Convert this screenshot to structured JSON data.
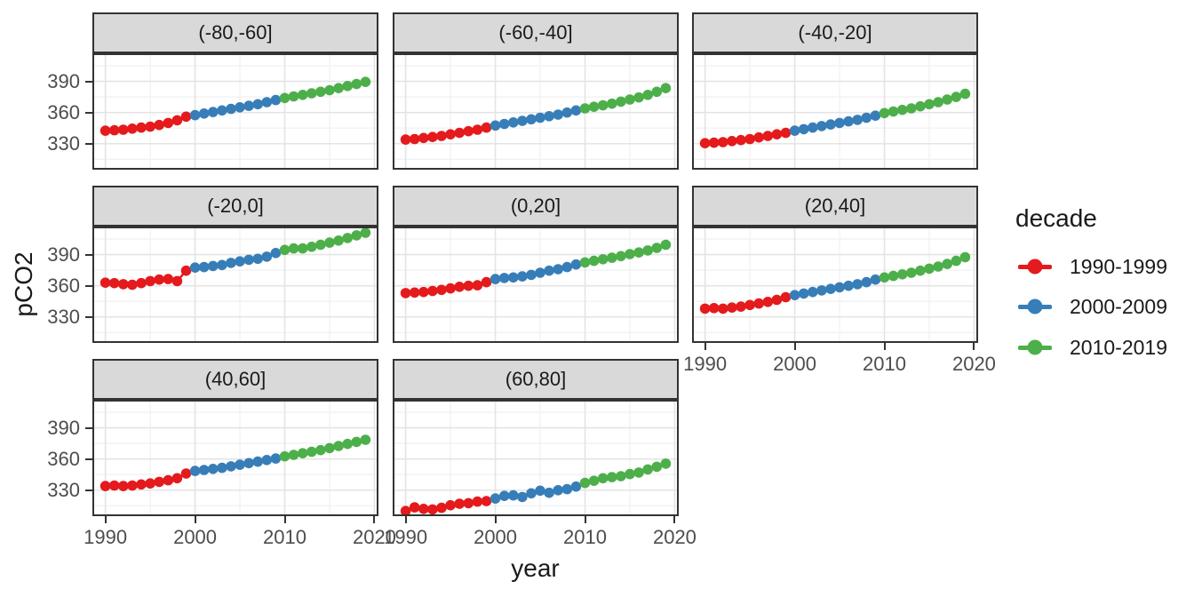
{
  "figure": {
    "x_axis_title": "year",
    "y_axis_title": "pCO2"
  },
  "chart_data": {
    "type": "scatter",
    "subtype": "line+point, faceted",
    "xlabel": "year",
    "ylabel": "pCO2",
    "legend_title": "decade",
    "legend_position": "right",
    "grid": "major and minor, theme_bw style",
    "x": [
      1990,
      1991,
      1992,
      1993,
      1994,
      1995,
      1996,
      1997,
      1998,
      1999,
      2000,
      2001,
      2002,
      2003,
      2004,
      2005,
      2006,
      2007,
      2008,
      2009,
      2010,
      2011,
      2012,
      2013,
      2014,
      2015,
      2016,
      2017,
      2018,
      2019
    ],
    "x_ticks": [
      1990,
      2000,
      2010,
      2020
    ],
    "y_ticks": [
      330,
      360,
      390
    ],
    "x_minor": [
      1995,
      2005,
      2015
    ],
    "y_minor": [
      315,
      345,
      375,
      405
    ],
    "x_domain": [
      1988.55,
      2020.45
    ],
    "y_domain": [
      305,
      417
    ],
    "decades": [
      {
        "name": "1990-1999",
        "color": "#E41A1C",
        "start_index": 0,
        "end_index": 9
      },
      {
        "name": "2000-2009",
        "color": "#377EB8",
        "start_index": 10,
        "end_index": 19
      },
      {
        "name": "2010-2019",
        "color": "#4DAF4A",
        "start_index": 20,
        "end_index": 29
      }
    ],
    "facets": [
      {
        "label": "(-80,-60]",
        "values": [
          342.5,
          343,
          343.5,
          344.5,
          345.5,
          346.5,
          348,
          350,
          352.5,
          356,
          357.5,
          359,
          360.5,
          362,
          363.5,
          365,
          366.5,
          368,
          370,
          372,
          374,
          375.5,
          377,
          378.5,
          380,
          381.5,
          383.5,
          385.5,
          387.5,
          389.5
        ]
      },
      {
        "label": "(-60,-40]",
        "values": [
          334,
          334.5,
          335.5,
          336.5,
          337.5,
          339,
          340.5,
          342,
          343.5,
          345.5,
          347.5,
          349,
          350.5,
          352,
          353.5,
          355,
          356.5,
          358,
          360,
          362,
          364,
          365.5,
          367,
          368.5,
          370.5,
          372.5,
          374.5,
          377,
          380,
          383.5
        ]
      },
      {
        "label": "(-40,-20]",
        "values": [
          330.5,
          331,
          331.5,
          332.5,
          333.5,
          334.5,
          336,
          337.5,
          339,
          340.5,
          342.5,
          344,
          345.5,
          347,
          348.5,
          350,
          351.5,
          353,
          355,
          357,
          359.5,
          361,
          362.5,
          364,
          366,
          368,
          370,
          372.5,
          375,
          378
        ]
      },
      {
        "label": "(-20,0]",
        "values": [
          363,
          362.5,
          361.5,
          361,
          362.5,
          364.5,
          366,
          366.5,
          364.5,
          374.5,
          377.5,
          378,
          379,
          380,
          382,
          383.5,
          385,
          386,
          388,
          391.5,
          394.5,
          396,
          396,
          397.5,
          399.5,
          401.5,
          403.5,
          406,
          408.5,
          411
        ]
      },
      {
        "label": "(0,20]",
        "values": [
          353,
          353.5,
          354,
          355,
          356,
          357.5,
          359,
          360,
          360.5,
          363.5,
          366.5,
          367.5,
          368,
          369,
          370.5,
          372.5,
          374.5,
          376,
          378,
          380.5,
          382.5,
          384,
          385.5,
          387,
          388.5,
          390.5,
          392,
          394,
          396.5,
          399.5
        ]
      },
      {
        "label": "(20,40]",
        "values": [
          338,
          338.5,
          338,
          339,
          340,
          341.5,
          343,
          344.5,
          346.5,
          349,
          351,
          352.5,
          354,
          355.5,
          357,
          358.5,
          360,
          361.5,
          363.5,
          366,
          368,
          369.5,
          371,
          372.5,
          374.5,
          376.5,
          378.5,
          381,
          384,
          387.5
        ]
      },
      {
        "label": "(40,60]",
        "values": [
          334,
          334.5,
          334,
          334.5,
          335.5,
          336.5,
          338,
          339.5,
          341.5,
          346,
          348.5,
          349.5,
          350.5,
          351.5,
          353,
          354.5,
          356,
          357.5,
          359,
          360.5,
          362.5,
          364,
          365.5,
          367,
          368.5,
          370.5,
          372.5,
          374.5,
          376.5,
          378.5
        ]
      },
      {
        "label": "(60,80]",
        "values": [
          310,
          313.5,
          312,
          311.5,
          313,
          315.5,
          317,
          317.5,
          319,
          319.5,
          322,
          324.5,
          325,
          323.5,
          327,
          329.5,
          327.5,
          330,
          331,
          333.5,
          337,
          339,
          341.5,
          342.5,
          343.5,
          345.5,
          347,
          350,
          352.5,
          355.5
        ]
      }
    ],
    "colors": {
      "strip_bg": "#D9D9D9",
      "panel_bg": "#FFFFFF",
      "panel_border": "#333333",
      "grid_major": "#E4E4E4",
      "grid_minor": "#F2F2F2",
      "axis_text": "#4D4D4D",
      "title_text": "#1A1A1A"
    }
  }
}
